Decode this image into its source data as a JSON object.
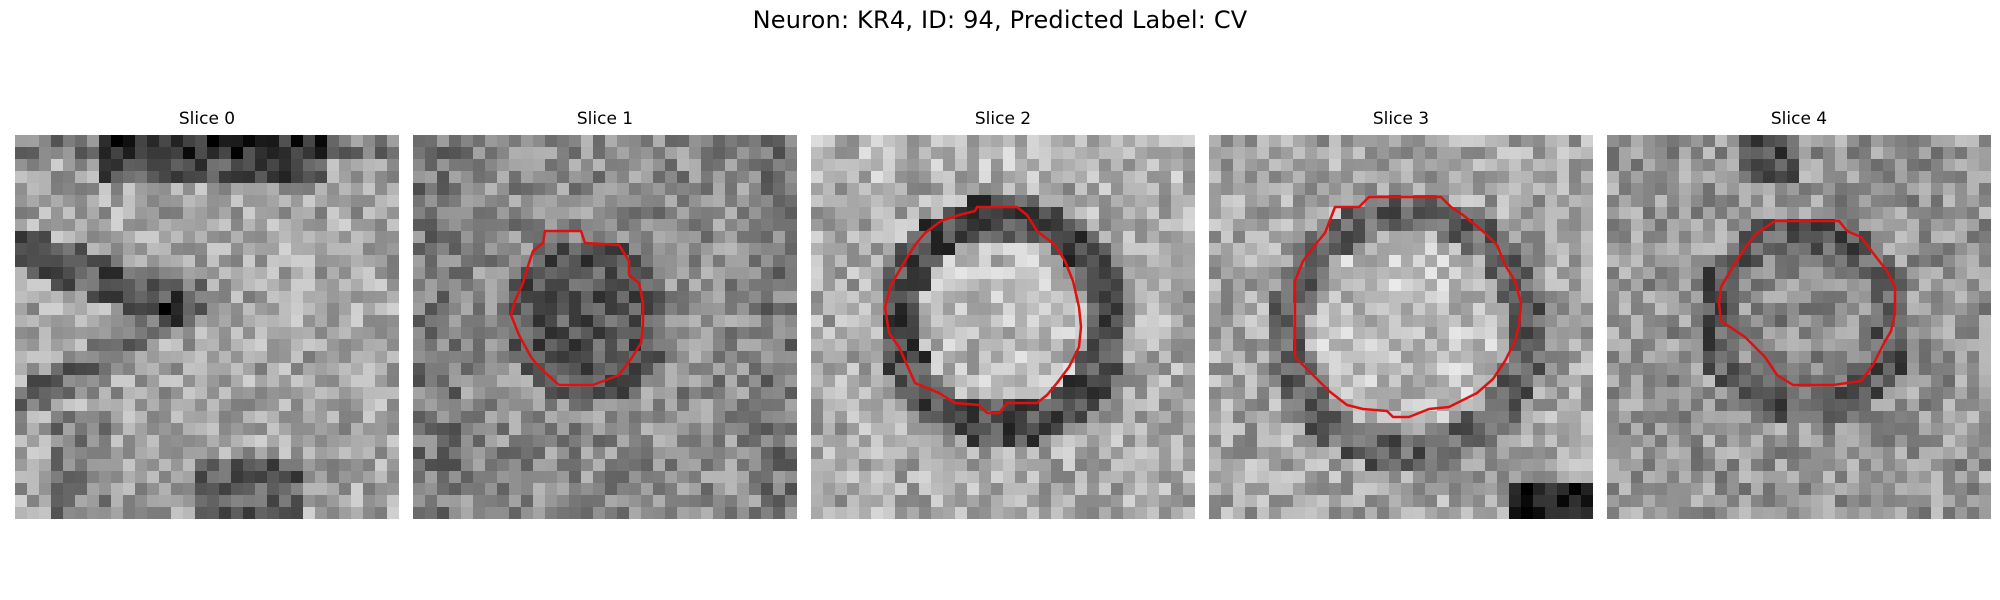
{
  "figure": {
    "title": "Neuron: KR4, ID: 94, Predicted Label: CV"
  },
  "colors": {
    "background": "#ffffff",
    "contour": "#e01010",
    "colormap": "grayscale"
  },
  "panels": [
    {
      "title": "Slice 0",
      "has_contour": false
    },
    {
      "title": "Slice 1",
      "has_contour": true
    },
    {
      "title": "Slice 2",
      "has_contour": true
    },
    {
      "title": "Slice 3",
      "has_contour": true
    },
    {
      "title": "Slice 4",
      "has_contour": true
    }
  ]
}
